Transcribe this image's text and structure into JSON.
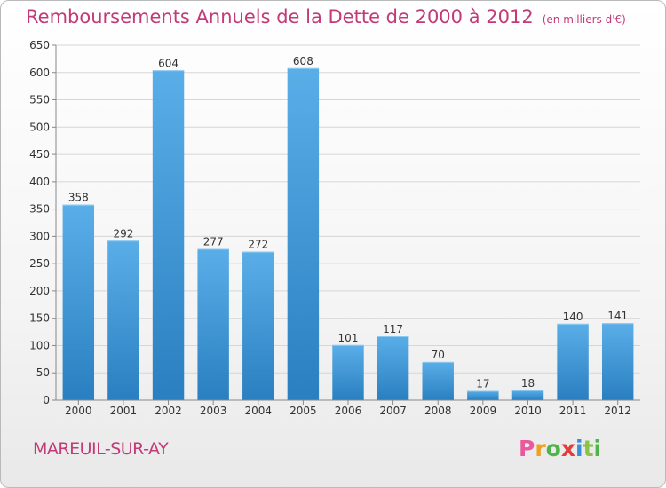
{
  "header": {
    "title": "Remboursements Annuels de la Dette de 2000 à 2012",
    "unit": "(en milliers d'€)"
  },
  "footer": {
    "commune": "MAREUIL-SUR-AY",
    "logo": [
      "P",
      "r",
      "o",
      "x",
      "i",
      "t",
      "i"
    ]
  },
  "colors": {
    "accent": "#c23a78",
    "bar_top": "#5aaee8",
    "bar_bottom": "#2a7fc0"
  },
  "chart_data": {
    "type": "bar",
    "title": "Remboursements Annuels de la Dette de 2000 à 2012",
    "subtitle": "(en milliers d'€)",
    "categories": [
      "2000",
      "2001",
      "2002",
      "2003",
      "2004",
      "2005",
      "2006",
      "2007",
      "2008",
      "2009",
      "2010",
      "2011",
      "2012"
    ],
    "values": [
      358,
      292,
      604,
      277,
      272,
      608,
      101,
      117,
      70,
      17,
      18,
      140,
      141
    ],
    "ylim": [
      0,
      650
    ],
    "yticks": [
      0,
      50,
      100,
      150,
      200,
      250,
      300,
      350,
      400,
      450,
      500,
      550,
      600,
      650
    ],
    "grid": true,
    "data_labels": true
  }
}
